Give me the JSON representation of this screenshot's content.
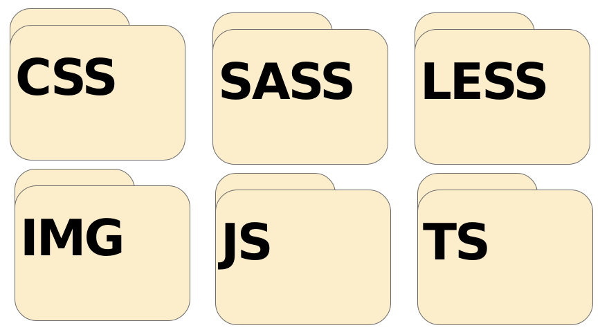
{
  "folders": [
    {
      "label": "CSS",
      "icon": "folder-icon"
    },
    {
      "label": "SASS",
      "icon": "folder-icon"
    },
    {
      "label": "LESS",
      "icon": "folder-icon"
    },
    {
      "label": "IMG",
      "icon": "folder-icon"
    },
    {
      "label": "JS",
      "icon": "folder-icon"
    },
    {
      "label": "TS",
      "icon": "folder-icon"
    }
  ],
  "colors": {
    "folder_fill": "#fdeecb",
    "folder_stroke": "#6b6b6b",
    "text": "#000000",
    "background": "#ffffff"
  }
}
